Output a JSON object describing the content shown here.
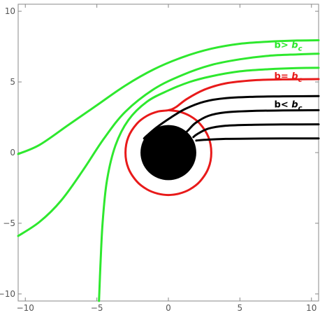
{
  "chart_data": {
    "type": "line",
    "title": "",
    "xlabel": "",
    "ylabel": "",
    "xlim": [
      -10.5,
      10.5
    ],
    "ylim": [
      -10.5,
      10.5
    ],
    "x_ticks": [
      -10,
      -5,
      0,
      5,
      10
    ],
    "y_ticks": [
      -10,
      -5,
      0,
      5,
      10
    ],
    "grid": false,
    "black_hole": {
      "center": [
        0,
        0
      ],
      "radius": 1.95,
      "color": "#000000"
    },
    "photon_circle": {
      "center": [
        0,
        0
      ],
      "radius": 3.0,
      "color": "#e81a1a"
    },
    "annotations": [
      {
        "base": "b>",
        "sub": "c",
        "color": "#2ee82e",
        "x": 7.4,
        "y": 7.4
      },
      {
        "base": "b=",
        "sub": "c",
        "color": "#e81a1a",
        "x": 7.4,
        "y": 5.2
      },
      {
        "base": "b<",
        "sub": "c",
        "color": "#000000",
        "x": 7.4,
        "y": 3.2
      }
    ],
    "series": [
      {
        "group": "b>bc",
        "color": "#2ee82e",
        "points": [
          [
            10.5,
            7.95
          ],
          [
            9,
            7.93
          ],
          [
            7,
            7.85
          ],
          [
            5,
            7.7
          ],
          [
            3,
            7.35
          ],
          [
            1,
            6.75
          ],
          [
            -1,
            5.9
          ],
          [
            -3,
            4.75
          ],
          [
            -5,
            3.35
          ],
          [
            -7,
            1.95
          ],
          [
            -9,
            0.55
          ],
          [
            -10.5,
            -0.1
          ]
        ]
      },
      {
        "group": "b>bc",
        "color": "#2ee82e",
        "points": [
          [
            10.5,
            7.0
          ],
          [
            9,
            6.95
          ],
          [
            7,
            6.85
          ],
          [
            5,
            6.6
          ],
          [
            3,
            6.2
          ],
          [
            1,
            5.5
          ],
          [
            -1,
            4.5
          ],
          [
            -3,
            2.9
          ],
          [
            -4.5,
            1.0
          ],
          [
            -6,
            -1.3
          ],
          [
            -7.5,
            -3.4
          ],
          [
            -9,
            -4.9
          ],
          [
            -10.5,
            -5.9
          ]
        ]
      },
      {
        "group": "b>bc",
        "color": "#2ee82e",
        "points": [
          [
            10.5,
            6.0
          ],
          [
            9,
            5.98
          ],
          [
            7,
            5.9
          ],
          [
            5,
            5.75
          ],
          [
            3,
            5.4
          ],
          [
            1.5,
            5.0
          ],
          [
            0,
            4.4
          ],
          [
            -1.5,
            3.6
          ],
          [
            -2.8,
            2.3
          ],
          [
            -3.7,
            0.5
          ],
          [
            -4.3,
            -2.0
          ],
          [
            -4.6,
            -5.0
          ],
          [
            -4.75,
            -8.0
          ],
          [
            -4.85,
            -10.5
          ]
        ]
      },
      {
        "group": "b=bc",
        "color": "#e81a1a",
        "points": [
          [
            10.5,
            5.2
          ],
          [
            8,
            5.18
          ],
          [
            6,
            5.12
          ],
          [
            4,
            4.9
          ],
          [
            2.5,
            4.45
          ],
          [
            1.3,
            3.8
          ],
          [
            0.5,
            3.2
          ],
          [
            0.0,
            3.0
          ],
          [
            -0.75,
            2.9
          ],
          [
            -1.5,
            2.6
          ],
          [
            -2.2,
            2.05
          ],
          [
            -2.8,
            1.1
          ],
          [
            -3.0,
            0.0
          ],
          [
            -2.8,
            -1.1
          ],
          [
            -2.2,
            -2.05
          ],
          [
            -1.5,
            -2.6
          ],
          [
            -0.75,
            -2.9
          ],
          [
            0.0,
            -3.0
          ],
          [
            0.75,
            -2.9
          ],
          [
            1.5,
            -2.6
          ],
          [
            2.2,
            -2.05
          ],
          [
            2.8,
            -1.1
          ],
          [
            3.0,
            0.0
          ],
          [
            2.8,
            1.1
          ],
          [
            2.2,
            2.05
          ],
          [
            1.5,
            2.6
          ],
          [
            0.75,
            2.9
          ],
          [
            0.0,
            3.0
          ]
        ]
      },
      {
        "group": "b<bc",
        "color": "#000000",
        "points": [
          [
            10.5,
            4.0
          ],
          [
            8,
            3.98
          ],
          [
            6,
            3.95
          ],
          [
            4,
            3.85
          ],
          [
            2.5,
            3.6
          ],
          [
            1.2,
            3.1
          ],
          [
            0.2,
            2.5
          ],
          [
            -0.8,
            1.8
          ],
          [
            -1.5,
            1.2
          ],
          [
            -1.7,
            1.0
          ]
        ]
      },
      {
        "group": "b<bc",
        "color": "#000000",
        "points": [
          [
            10.5,
            3.0
          ],
          [
            8,
            2.98
          ],
          [
            6,
            2.95
          ],
          [
            4,
            2.85
          ],
          [
            2.8,
            2.6
          ],
          [
            1.9,
            2.1
          ],
          [
            1.4,
            1.6
          ],
          [
            1.2,
            1.4
          ]
        ]
      },
      {
        "group": "b<bc",
        "color": "#000000",
        "points": [
          [
            10.5,
            2.0
          ],
          [
            8,
            1.99
          ],
          [
            6,
            1.97
          ],
          [
            4,
            1.9
          ],
          [
            2.8,
            1.7
          ],
          [
            2.0,
            1.3
          ],
          [
            1.75,
            1.1
          ]
        ]
      },
      {
        "group": "b<bc",
        "color": "#000000",
        "points": [
          [
            10.5,
            1.0
          ],
          [
            8,
            1.0
          ],
          [
            6,
            0.99
          ],
          [
            4,
            0.97
          ],
          [
            2.5,
            0.9
          ],
          [
            1.95,
            0.85
          ]
        ]
      }
    ]
  }
}
